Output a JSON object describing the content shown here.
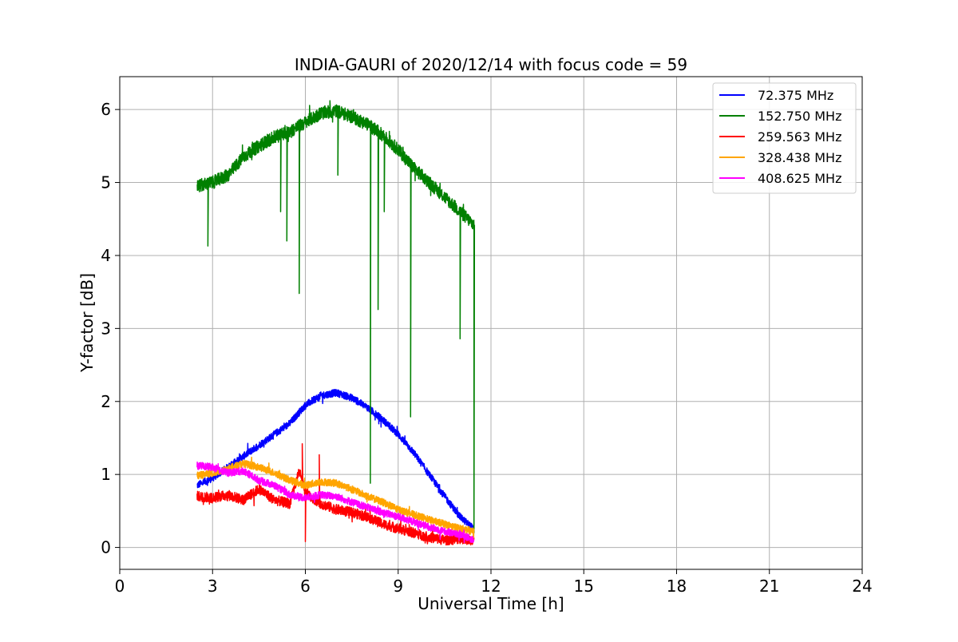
{
  "chart_data": {
    "type": "line",
    "title": "INDIA-GAURI of 2020/12/14 with focus code = 59",
    "xlabel": "Universal Time [h]",
    "ylabel": "Y-factor [dB]",
    "xlim": [
      0,
      24
    ],
    "ylim": [
      -0.3,
      6.45
    ],
    "x_ticks": [
      0,
      3,
      6,
      9,
      12,
      15,
      18,
      21,
      24
    ],
    "y_ticks": [
      0,
      1,
      2,
      3,
      4,
      5,
      6
    ],
    "x_tick_labels": [
      "0",
      "3",
      "6",
      "9",
      "12",
      "15",
      "18",
      "21",
      "24"
    ],
    "y_tick_labels": [
      "0",
      "1",
      "2",
      "3",
      "4",
      "5",
      "6"
    ],
    "grid": true,
    "legend_position": "top-right",
    "series": [
      {
        "name": " 72.375 MHz",
        "color": "#0000ff",
        "noise": 0.05,
        "x": [
          2.5,
          3.0,
          3.5,
          4.0,
          4.5,
          5.0,
          5.5,
          6.0,
          6.5,
          7.0,
          7.5,
          8.0,
          8.5,
          9.0,
          9.5,
          10.0,
          10.5,
          11.0,
          11.45
        ],
        "y": [
          0.85,
          0.95,
          1.1,
          1.25,
          1.4,
          1.55,
          1.7,
          1.95,
          2.08,
          2.12,
          2.05,
          1.92,
          1.75,
          1.55,
          1.3,
          1.0,
          0.7,
          0.42,
          0.25
        ]
      },
      {
        "name": "152.750 MHz",
        "color": "#008000",
        "noise": 0.09,
        "x": [
          2.5,
          3.0,
          3.5,
          4.0,
          4.5,
          5.0,
          5.5,
          6.0,
          6.5,
          7.0,
          7.5,
          8.0,
          8.5,
          9.0,
          9.5,
          10.0,
          10.5,
          11.0,
          11.45
        ],
        "y": [
          4.95,
          5.0,
          5.1,
          5.35,
          5.5,
          5.62,
          5.7,
          5.82,
          5.95,
          5.98,
          5.9,
          5.8,
          5.65,
          5.45,
          5.2,
          5.0,
          4.8,
          4.6,
          4.42
        ],
        "dips": [
          [
            2.85,
            4.13
          ],
          [
            5.2,
            4.6
          ],
          [
            5.4,
            4.2
          ],
          [
            5.8,
            3.48
          ],
          [
            7.05,
            5.1
          ],
          [
            8.1,
            0.88
          ],
          [
            8.35,
            3.26
          ],
          [
            8.55,
            4.6
          ],
          [
            9.4,
            1.79
          ],
          [
            11.0,
            2.86
          ],
          [
            11.45,
            0.2
          ]
        ]
      },
      {
        "name": "259.563 MHz",
        "color": "#ff0000",
        "noise": 0.07,
        "x": [
          2.5,
          3.0,
          3.5,
          4.0,
          4.5,
          5.0,
          5.5,
          5.8,
          6.0,
          6.5,
          7.0,
          7.5,
          8.0,
          8.5,
          9.0,
          9.5,
          10.0,
          10.5,
          11.0,
          11.45
        ],
        "y": [
          0.7,
          0.68,
          0.72,
          0.65,
          0.8,
          0.65,
          0.6,
          1.05,
          0.75,
          0.6,
          0.52,
          0.48,
          0.42,
          0.32,
          0.26,
          0.2,
          0.14,
          0.1,
          0.12,
          0.1
        ],
        "dips": [
          [
            6.0,
            0.08
          ],
          [
            5.9,
            1.42
          ],
          [
            6.45,
            1.27
          ]
        ]
      },
      {
        "name": "328.438 MHz",
        "color": "#ffa500",
        "noise": 0.05,
        "x": [
          2.5,
          3.0,
          3.5,
          4.0,
          4.5,
          5.0,
          5.5,
          6.0,
          6.5,
          7.0,
          7.5,
          8.0,
          8.5,
          9.0,
          9.5,
          10.0,
          10.5,
          11.0,
          11.45
        ],
        "y": [
          0.98,
          1.02,
          1.08,
          1.15,
          1.1,
          1.02,
          0.92,
          0.85,
          0.9,
          0.88,
          0.8,
          0.7,
          0.62,
          0.52,
          0.45,
          0.38,
          0.32,
          0.26,
          0.22
        ]
      },
      {
        "name": "408.625 MHz",
        "color": "#ff00ff",
        "noise": 0.05,
        "x": [
          2.5,
          3.0,
          3.5,
          4.0,
          4.5,
          5.0,
          5.5,
          6.0,
          6.5,
          7.0,
          7.5,
          8.0,
          8.5,
          9.0,
          9.5,
          10.0,
          10.5,
          11.0,
          11.45
        ],
        "y": [
          1.12,
          1.1,
          1.02,
          1.05,
          0.92,
          0.85,
          0.72,
          0.68,
          0.72,
          0.7,
          0.62,
          0.55,
          0.48,
          0.42,
          0.35,
          0.28,
          0.22,
          0.18,
          0.1
        ]
      }
    ]
  }
}
